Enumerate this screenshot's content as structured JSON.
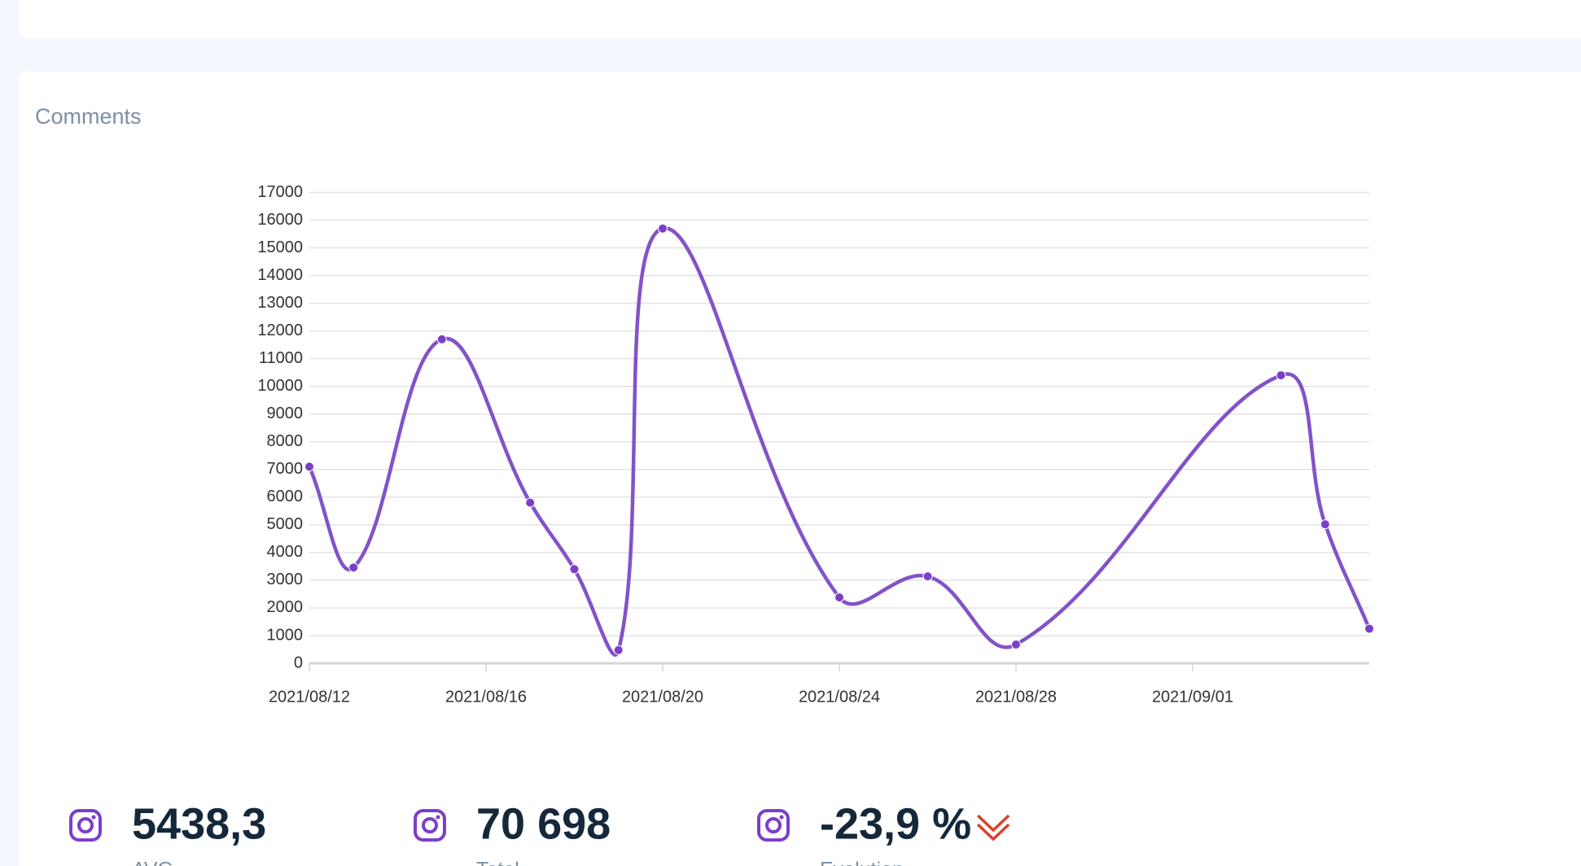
{
  "card_title": "Comments",
  "chart_data": {
    "type": "line",
    "x": [
      "2021/08/12",
      "2021/08/13",
      "2021/08/15",
      "2021/08/17",
      "2021/08/18",
      "2021/08/19",
      "2021/08/20",
      "2021/08/24",
      "2021/08/26",
      "2021/08/28",
      "2021/09/03",
      "2021/09/04",
      "2021/09/05"
    ],
    "series": [
      {
        "name": "Comments",
        "color": "#8352c9",
        "values": [
          7100,
          3460,
          11700,
          5800,
          3400,
          480,
          15700,
          2380,
          3140,
          680,
          10400,
          5020,
          1250
        ]
      }
    ],
    "xlim": [
      "2021/08/12",
      "2021/09/05"
    ],
    "xticks": [
      "2021/08/12",
      "2021/08/16",
      "2021/08/20",
      "2021/08/24",
      "2021/08/28",
      "2021/09/01"
    ],
    "ylim": [
      0,
      17000
    ],
    "yticks": [
      0,
      1000,
      2000,
      3000,
      4000,
      5000,
      6000,
      7000,
      8000,
      9000,
      10000,
      11000,
      12000,
      13000,
      14000,
      15000,
      16000,
      17000
    ],
    "grid": true
  },
  "stats": [
    {
      "value": "5438,3",
      "label": "AVG"
    },
    {
      "value": "70 698",
      "label": "Total"
    },
    {
      "value": "-23,9 %",
      "label": "Evolution"
    }
  ]
}
